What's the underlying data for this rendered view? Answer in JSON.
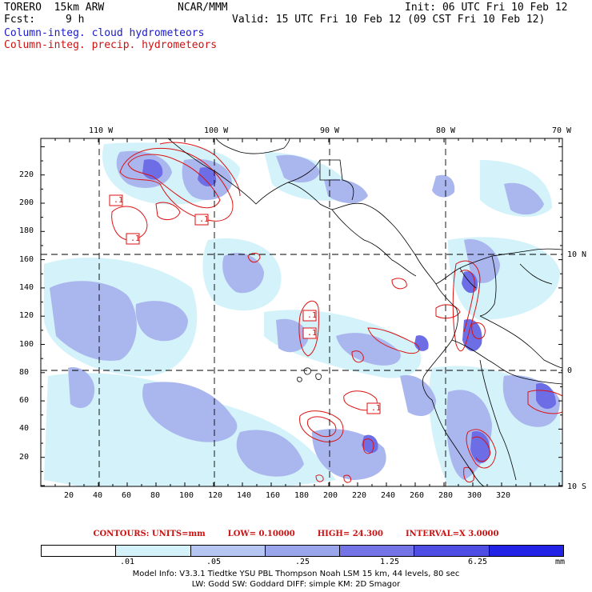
{
  "header": {
    "model_label": "TORERO  15km ARW",
    "center": "NCAR/MMM",
    "init": "Init: 06 UTC Fri 10 Feb 12",
    "fcst_label": "Fcst:",
    "fcst_value": "9 h",
    "valid": "Valid: 15 UTC Fri 10 Feb 12 (09 CST Fri 10 Feb 12)",
    "field_cloud": "Column-integ. cloud hydrometeors",
    "field_precip": "Column-integ. precip. hydrometeors"
  },
  "axes": {
    "top_lon_labels": [
      "110 W",
      "100 W",
      "90 W",
      "80 W",
      "70 W"
    ],
    "right_lat_labels": [
      "10 N",
      "0",
      "10 S"
    ],
    "left_y_ticks": [
      "220",
      "200",
      "180",
      "160",
      "140",
      "120",
      "100",
      "80",
      "60",
      "40",
      "20"
    ],
    "bottom_x_ticks": [
      "20",
      "40",
      "60",
      "80",
      "100",
      "120",
      "140",
      "160",
      "180",
      "200",
      "220",
      "240",
      "260",
      "280",
      "300",
      "320"
    ]
  },
  "contour_labels": [
    ".1",
    ".1",
    ".1",
    ".1",
    ".1",
    ".1"
  ],
  "contours_info": {
    "units": "CONTOURS:  UNITS=mm",
    "low": "LOW= 0.10000",
    "high": "HIGH=  24.300",
    "interval": "INTERVAL=X  3.0000"
  },
  "colorbar": {
    "colors": [
      "#ffffff",
      "#d4f2fa",
      "#b6c6f2",
      "#9aa6ec",
      "#7474e6",
      "#4e4ee4",
      "#2323e8"
    ],
    "labels": [
      ".01",
      ".05",
      ".25",
      "1.25",
      "6.25"
    ],
    "unit": "mm"
  },
  "model_info": {
    "line1": "Model Info: V3.3.1   Tiedtke YSU PBL  Thompson    Noah LSM  15 km,   44 levels,   80 sec",
    "line2": "LW: Godd SW: Goddard DIFF: simple KM: 2D Smagor"
  }
}
